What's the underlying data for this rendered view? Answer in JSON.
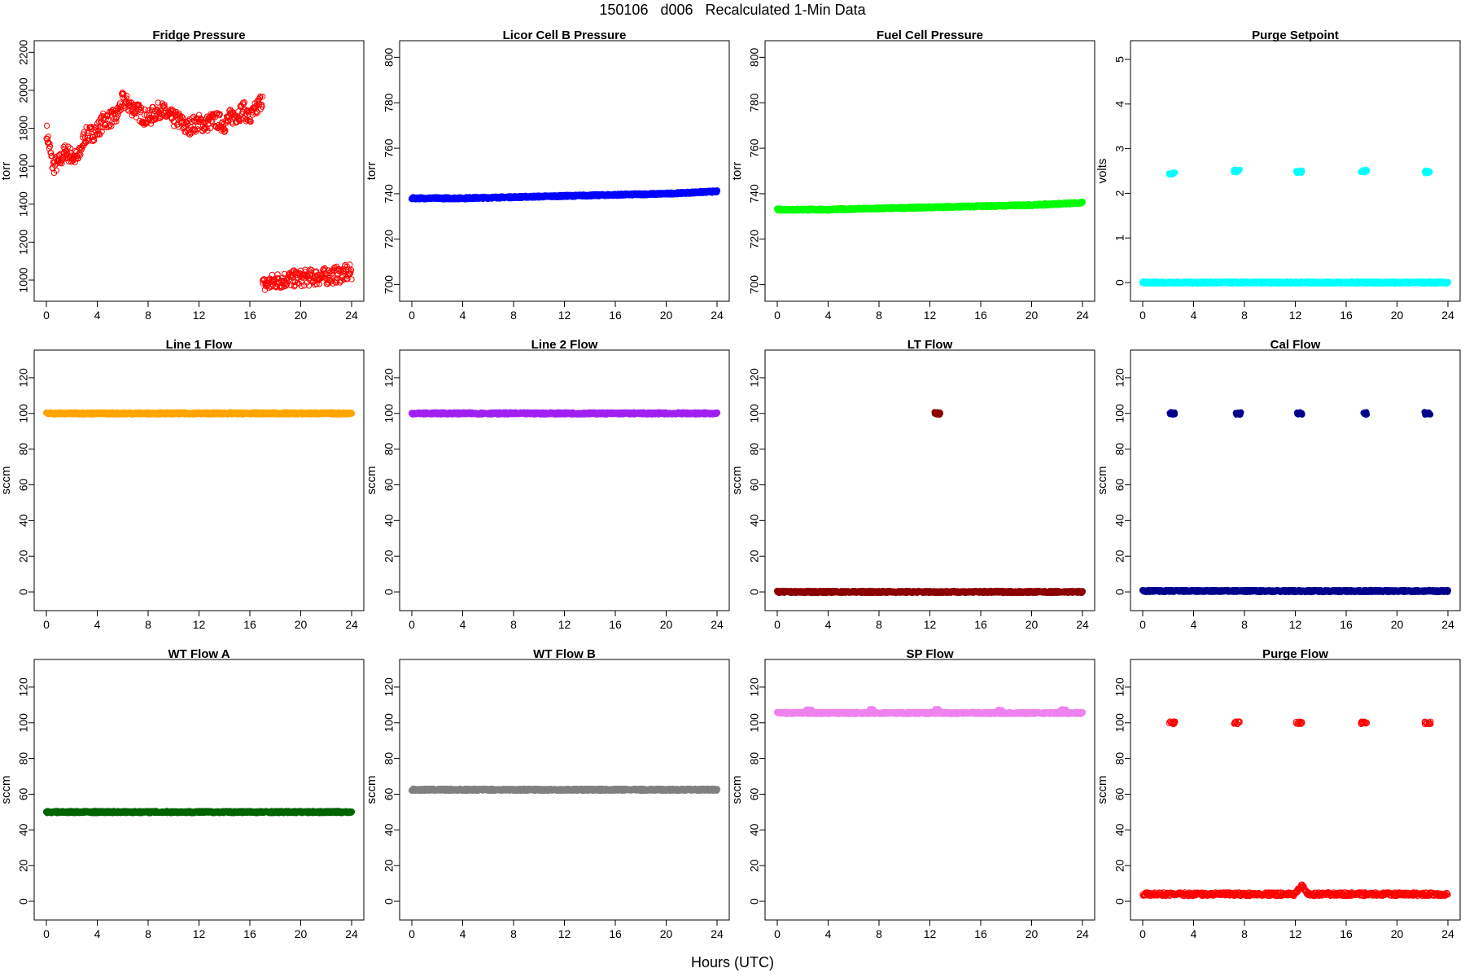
{
  "figure": {
    "title": "150106   d006   Recalculated 1-Min Data",
    "xlabel": "Hours (UTC)"
  },
  "chart_data": [
    {
      "type": "scatter",
      "title": "Fridge Pressure",
      "ylabel": "torr",
      "xlim": [
        0,
        24
      ],
      "ylim": [
        940,
        2210
      ],
      "xticks": [
        "0",
        "4",
        "8",
        "12",
        "16",
        "20",
        "24"
      ],
      "yticks": [
        "1000",
        "1200",
        "1400",
        "1600",
        "1800",
        "2000",
        "2200"
      ],
      "color": "#ff0000",
      "marker": "open-circle",
      "series": [
        {
          "x": [
            0,
            0.5,
            1,
            1.5,
            2,
            2.5,
            3,
            3.5,
            4,
            4.5,
            5,
            5.5,
            6,
            6.5,
            7,
            7.5,
            8,
            8.5,
            9,
            9.5,
            10,
            10.5,
            11,
            11.5,
            12,
            12.5,
            13,
            13.5,
            14,
            14.5,
            15,
            15.5,
            16,
            16.5,
            17
          ],
          "y": [
            1790,
            1600,
            1620,
            1680,
            1650,
            1640,
            1760,
            1770,
            1790,
            1840,
            1850,
            1860,
            1950,
            1920,
            1900,
            1870,
            1850,
            1880,
            1900,
            1870,
            1850,
            1840,
            1800,
            1820,
            1830,
            1820,
            1840,
            1840,
            1820,
            1860,
            1870,
            1900,
            1850,
            1900,
            1960
          ]
        },
        {
          "x": [
            17,
            18,
            19,
            20,
            21,
            22,
            23,
            24
          ],
          "y": [
            970,
            995,
            1005,
            1010,
            1015,
            1020,
            1030,
            1040
          ]
        }
      ]
    },
    {
      "type": "scatter",
      "title": "Licor Cell B Pressure",
      "ylabel": "torr",
      "xlim": [
        0,
        24
      ],
      "ylim": [
        697,
        803
      ],
      "xticks": [
        "0",
        "4",
        "8",
        "12",
        "16",
        "20",
        "24"
      ],
      "yticks": [
        "700",
        "720",
        "740",
        "760",
        "780",
        "800"
      ],
      "color": "#0000ff",
      "marker": "filled",
      "series": [
        {
          "x": [
            0,
            4,
            8,
            12,
            16,
            20,
            24
          ],
          "y": [
            738,
            738,
            738.5,
            739,
            739.5,
            740,
            741
          ]
        }
      ]
    },
    {
      "type": "scatter",
      "title": "Fuel Cell Pressure",
      "ylabel": "torr",
      "xlim": [
        0,
        24
      ],
      "ylim": [
        697,
        803
      ],
      "xticks": [
        "0",
        "4",
        "8",
        "12",
        "16",
        "20",
        "24"
      ],
      "yticks": [
        "700",
        "720",
        "740",
        "760",
        "780",
        "800"
      ],
      "color": "#00ff00",
      "marker": "filled",
      "series": [
        {
          "x": [
            0,
            4,
            8,
            12,
            16,
            20,
            24
          ],
          "y": [
            733,
            733,
            733.5,
            734,
            734.5,
            735,
            736
          ]
        }
      ]
    },
    {
      "type": "scatter",
      "title": "Purge Setpoint",
      "ylabel": "volts",
      "xlim": [
        0,
        24
      ],
      "ylim": [
        -0.2,
        5.2
      ],
      "xticks": [
        "0",
        "4",
        "8",
        "12",
        "16",
        "20",
        "24"
      ],
      "yticks": [
        "0",
        "1",
        "2",
        "3",
        "4",
        "5"
      ],
      "color": "#00ffff",
      "marker": "filled",
      "series": [
        {
          "x": [
            0,
            24
          ],
          "y": [
            0,
            0
          ]
        },
        {
          "x": [
            2.3,
            7.4,
            12.3,
            17.4,
            22.4
          ],
          "y": [
            2.45,
            2.5,
            2.48,
            2.5,
            2.48
          ]
        }
      ]
    },
    {
      "type": "scatter",
      "title": "Line 1 Flow",
      "ylabel": "sccm",
      "xlim": [
        0,
        24
      ],
      "ylim": [
        -5,
        130
      ],
      "xticks": [
        "0",
        "4",
        "8",
        "12",
        "16",
        "20",
        "24"
      ],
      "yticks": [
        "0",
        "20",
        "40",
        "60",
        "80",
        "100",
        "120"
      ],
      "color": "#ffa500",
      "marker": "filled",
      "series": [
        {
          "x": [
            0,
            24
          ],
          "y": [
            100,
            100
          ]
        }
      ]
    },
    {
      "type": "scatter",
      "title": "Line 2 Flow",
      "ylabel": "sccm",
      "xlim": [
        0,
        24
      ],
      "ylim": [
        -5,
        130
      ],
      "xticks": [
        "0",
        "4",
        "8",
        "12",
        "16",
        "20",
        "24"
      ],
      "yticks": [
        "0",
        "20",
        "40",
        "60",
        "80",
        "100",
        "120"
      ],
      "color": "#a020f0",
      "marker": "filled",
      "series": [
        {
          "x": [
            0,
            24
          ],
          "y": [
            100,
            100
          ]
        }
      ]
    },
    {
      "type": "scatter",
      "title": "LT Flow",
      "ylabel": "sccm",
      "xlim": [
        0,
        24
      ],
      "ylim": [
        -5,
        130
      ],
      "xticks": [
        "0",
        "4",
        "8",
        "12",
        "16",
        "20",
        "24"
      ],
      "yticks": [
        "0",
        "20",
        "40",
        "60",
        "80",
        "100",
        "120"
      ],
      "color": "#8b0000",
      "marker": "filled",
      "series": [
        {
          "x": [
            0,
            24
          ],
          "y": [
            0,
            0
          ]
        },
        {
          "x": [
            12.6
          ],
          "y": [
            100
          ]
        }
      ]
    },
    {
      "type": "scatter",
      "title": "Cal Flow",
      "ylabel": "sccm",
      "xlim": [
        0,
        24
      ],
      "ylim": [
        -5,
        130
      ],
      "xticks": [
        "0",
        "4",
        "8",
        "12",
        "16",
        "20",
        "24"
      ],
      "yticks": [
        "0",
        "20",
        "40",
        "60",
        "80",
        "100",
        "120"
      ],
      "color": "#00008b",
      "marker": "filled",
      "series": [
        {
          "x": [
            0,
            24
          ],
          "y": [
            0.5,
            0.5
          ]
        },
        {
          "x": [
            2.3,
            7.5,
            12.3,
            17.5,
            22.4
          ],
          "y": [
            100,
            100,
            100,
            100,
            100
          ]
        }
      ]
    },
    {
      "type": "scatter",
      "title": "WT Flow A",
      "ylabel": "sccm",
      "xlim": [
        0,
        24
      ],
      "ylim": [
        -5,
        130
      ],
      "xticks": [
        "0",
        "4",
        "8",
        "12",
        "16",
        "20",
        "24"
      ],
      "yticks": [
        "0",
        "20",
        "40",
        "60",
        "80",
        "100",
        "120"
      ],
      "color": "#006400",
      "marker": "filled",
      "series": [
        {
          "x": [
            0,
            24
          ],
          "y": [
            50,
            50
          ]
        }
      ]
    },
    {
      "type": "scatter",
      "title": "WT Flow B",
      "ylabel": "sccm",
      "xlim": [
        0,
        24
      ],
      "ylim": [
        -5,
        130
      ],
      "xticks": [
        "0",
        "4",
        "8",
        "12",
        "16",
        "20",
        "24"
      ],
      "yticks": [
        "0",
        "20",
        "40",
        "60",
        "80",
        "100",
        "120"
      ],
      "color": "#808080",
      "marker": "filled",
      "series": [
        {
          "x": [
            0,
            24
          ],
          "y": [
            62.5,
            62.5
          ]
        }
      ]
    },
    {
      "type": "scatter",
      "title": "SP Flow",
      "ylabel": "sccm",
      "xlim": [
        0,
        24
      ],
      "ylim": [
        -5,
        130
      ],
      "xticks": [
        "0",
        "4",
        "8",
        "12",
        "16",
        "20",
        "24"
      ],
      "yticks": [
        "0",
        "20",
        "40",
        "60",
        "80",
        "100",
        "120"
      ],
      "color": "#ee82ee",
      "marker": "filled",
      "series": [
        {
          "x": [
            0,
            2.5,
            7.5,
            12.5,
            17.5,
            22.5,
            24
          ],
          "y": [
            105.5,
            105.5,
            105.5,
            105.5,
            105.5,
            105.5,
            105.5
          ]
        },
        {
          "x": [
            2.5,
            7.5,
            12.5,
            17.5,
            22.5
          ],
          "y": [
            107,
            107,
            107,
            107,
            107
          ]
        }
      ]
    },
    {
      "type": "scatter",
      "title": "Purge Flow",
      "ylabel": "sccm",
      "xlim": [
        0,
        24
      ],
      "ylim": [
        -5,
        130
      ],
      "xticks": [
        "0",
        "4",
        "8",
        "12",
        "16",
        "20",
        "24"
      ],
      "yticks": [
        "0",
        "20",
        "40",
        "60",
        "80",
        "100",
        "120"
      ],
      "color": "#ff0000",
      "marker": "open-circle",
      "series": [
        {
          "x": [
            0,
            4,
            8,
            12,
            12.5,
            13,
            16,
            20,
            24
          ],
          "y": [
            4,
            4,
            4,
            4,
            9,
            4,
            4,
            4,
            4
          ]
        },
        {
          "x": [
            2.3,
            7.4,
            12.3,
            17.4,
            22.4
          ],
          "y": [
            100,
            100,
            100,
            100,
            100
          ]
        }
      ]
    }
  ]
}
